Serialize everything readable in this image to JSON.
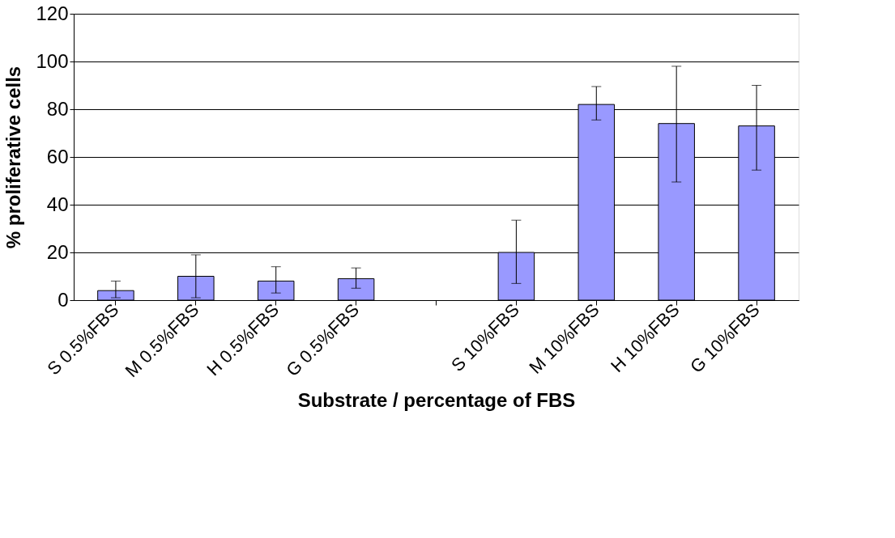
{
  "chart_data": {
    "type": "bar",
    "xlabel": "Substrate / percentage of FBS",
    "ylabel": "% proliferative cells",
    "categories": [
      "S 0.5%FBS",
      "M 0.5%FBS",
      "H 0.5%FBS",
      "G 0.5%FBS",
      null,
      "S 10%FBS",
      "M 10%FBS",
      "H 10%FBS",
      "G 10%FBS"
    ],
    "values": [
      4,
      10,
      8,
      9,
      null,
      20,
      82,
      74,
      73
    ],
    "errors": [
      [
        1,
        8
      ],
      [
        1,
        19
      ],
      [
        3,
        14
      ],
      [
        5,
        13.5
      ],
      null,
      [
        7,
        33.5
      ],
      [
        75.5,
        89.5
      ],
      [
        49.5,
        98
      ],
      [
        54.5,
        90
      ]
    ],
    "color": "#9999ff",
    "ylim": [
      0,
      120
    ],
    "yticks": [
      0,
      20,
      40,
      60,
      80,
      100,
      120
    ],
    "grid": "y"
  }
}
